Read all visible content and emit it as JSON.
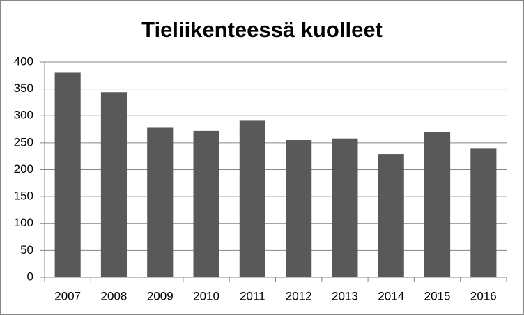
{
  "chart_data": {
    "type": "bar",
    "title": "Tieliikenteessä kuolleet",
    "categories": [
      "2007",
      "2008",
      "2009",
      "2010",
      "2011",
      "2012",
      "2013",
      "2014",
      "2015",
      "2016"
    ],
    "values": [
      380,
      344,
      279,
      272,
      292,
      255,
      258,
      229,
      270,
      239
    ],
    "color": "#595959",
    "ylim": [
      0,
      400
    ],
    "yticks": [
      0,
      50,
      100,
      150,
      200,
      250,
      300,
      350,
      400
    ],
    "grid": true
  }
}
